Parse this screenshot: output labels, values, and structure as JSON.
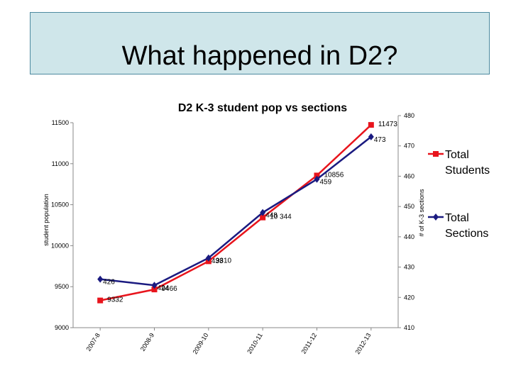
{
  "slide": {
    "title": "What happened in D2?"
  },
  "chart_data": {
    "type": "line",
    "title": "D2 K-3 student pop vs sections",
    "categories": [
      "2007-8",
      "2008-9",
      "2009-10",
      "2010-11",
      "2011-12",
      "2012-13"
    ],
    "left_axis": {
      "label": "student population",
      "ylim": [
        9000,
        11500
      ],
      "ticks": [
        9000,
        9500,
        10000,
        10500,
        11000,
        11500
      ]
    },
    "right_axis": {
      "label": "# of K-3 sections",
      "ylim": [
        410,
        480
      ],
      "ticks": [
        410,
        420,
        430,
        440,
        450,
        460,
        470,
        480
      ]
    },
    "series": [
      {
        "name": "Total Students",
        "axis": "left",
        "color": "#e8141c",
        "marker": "square",
        "values": [
          9332,
          9466,
          9810,
          10344,
          10856,
          11473
        ],
        "labels": [
          "9332",
          "9466",
          "9810",
          "10 344",
          "10856",
          "11473"
        ]
      },
      {
        "name": "Total Sections",
        "axis": "right",
        "color": "#1a1a80",
        "marker": "diamond",
        "values": [
          426,
          424,
          433,
          448,
          459,
          473
        ],
        "labels": [
          "426",
          "424",
          "433",
          "448",
          "459",
          "473"
        ]
      }
    ],
    "legend": {
      "placement": "right"
    },
    "grid": false
  }
}
